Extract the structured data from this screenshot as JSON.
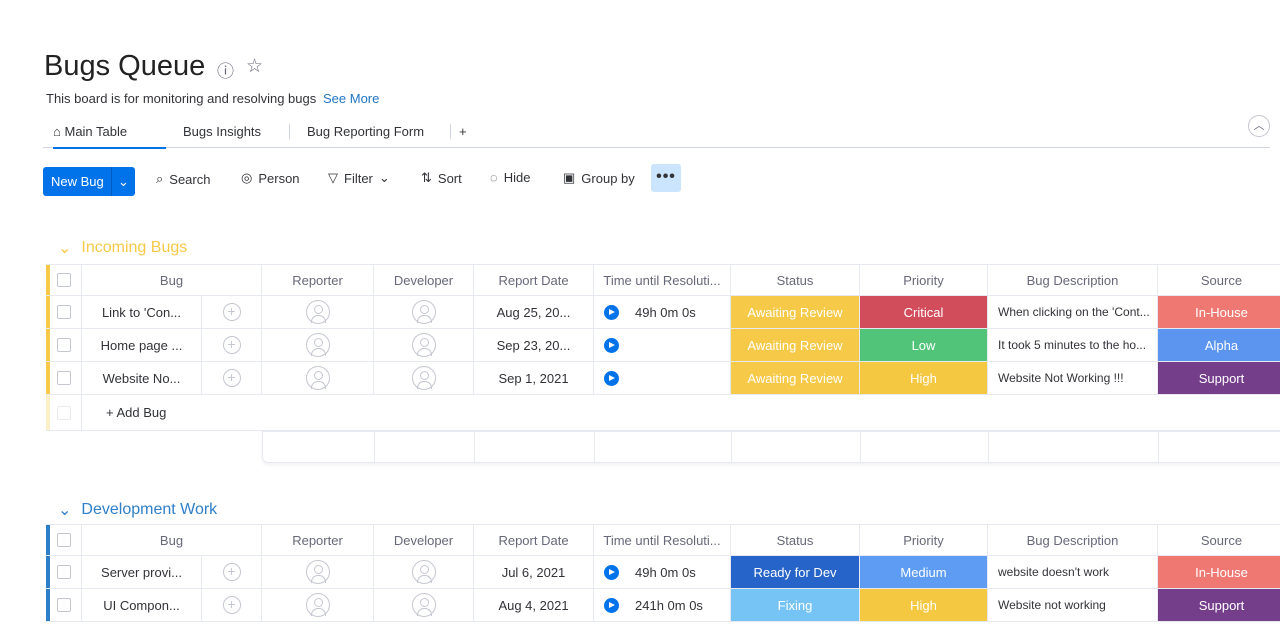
{
  "board": {
    "title": "Bugs Queue",
    "description": "This board is for monitoring and resolving bugs",
    "see_more": "See More"
  },
  "tabs": [
    {
      "label": "Main Table",
      "icon": "home-icon"
    },
    {
      "label": "Bugs Insights"
    },
    {
      "label": "Bug Reporting Form"
    },
    {
      "label": "+"
    }
  ],
  "toolbar": {
    "new": "New Bug",
    "search": "Search",
    "person": "Person",
    "filter": "Filter",
    "sort": "Sort",
    "hide": "Hide",
    "group_by": "Group by"
  },
  "columns": [
    "Bug",
    "Reporter",
    "Developer",
    "Report Date",
    "Time until Resoluti...",
    "Status",
    "Priority",
    "Bug Description",
    "Source"
  ],
  "colors": {
    "Awaiting Review": "#f7c948",
    "Critical": "#d14d5c",
    "Low": "#52c47a",
    "High": "#f5c842",
    "In-House": "#ef7873",
    "Alpha": "#5b95f0",
    "Support": "#743e8a",
    "Ready for Dev": "#2764c9",
    "Medium": "#5e9cf4",
    "Fixing": "#76c3f5"
  },
  "groups": [
    {
      "title": "Incoming Bugs",
      "color": "#f7c948",
      "add": "+ Add Bug",
      "rows": [
        {
          "bug": "Link to 'Con...",
          "date": "Aug 25, 20...",
          "time": "49h 0m 0s",
          "status": "Awaiting Review",
          "priority": "Critical",
          "desc": "When clicking on the 'Cont...",
          "source": "In-House"
        },
        {
          "bug": "Home page ...",
          "date": "Sep 23, 20...",
          "time": "",
          "status": "Awaiting Review",
          "priority": "Low",
          "desc": "It took 5 minutes to the ho...",
          "source": "Alpha"
        },
        {
          "bug": "Website No...",
          "date": "Sep 1, 2021",
          "time": "",
          "status": "Awaiting Review",
          "priority": "High",
          "desc": "Website Not Working !!!",
          "source": "Support"
        }
      ]
    },
    {
      "title": "Development Work",
      "color": "#2e7fc9",
      "rows": [
        {
          "bug": "Server provi...",
          "date": "Jul 6, 2021",
          "time": "49h 0m 0s",
          "status": "Ready for Dev",
          "priority": "Medium",
          "desc": "website doesn't work",
          "source": "In-House"
        },
        {
          "bug": "UI Compon...",
          "date": "Aug 4, 2021",
          "time": "241h 0m 0s",
          "status": "Fixing",
          "priority": "High",
          "desc": "Website not working",
          "source": "Support"
        }
      ]
    }
  ]
}
